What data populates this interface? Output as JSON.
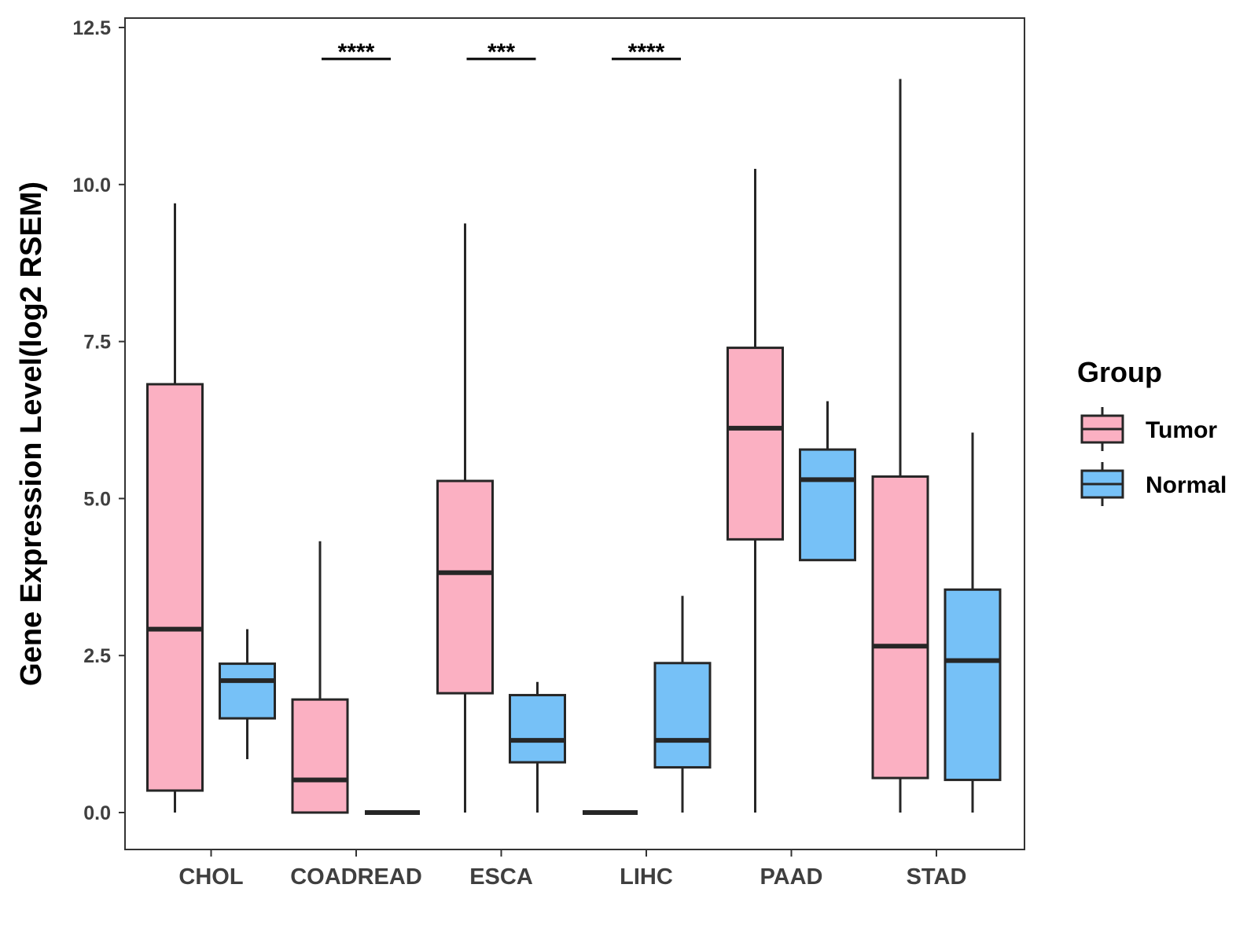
{
  "chart_data": {
    "type": "boxplot",
    "title": "",
    "xlabel": "",
    "ylabel": "Gene Expression Level(log2 RSEM)",
    "ylim": [
      -0.6,
      12.75
    ],
    "yticks": [
      "0.0",
      "2.5",
      "5.0",
      "7.5",
      "10.0",
      "12.5"
    ],
    "ytick_values": [
      0.0,
      2.5,
      5.0,
      7.5,
      10.0,
      12.5
    ],
    "categories": [
      "CHOL",
      "COADREAD",
      "ESCA",
      "LIHC",
      "PAAD",
      "STAD"
    ],
    "legend": {
      "title": "Group",
      "position": "right",
      "entries": [
        {
          "name": "Tumor",
          "color": "#FBB0C2"
        },
        {
          "name": "Normal",
          "color": "#76C1F7"
        }
      ]
    },
    "series": [
      {
        "name": "Tumor",
        "color": "#FBB0C2",
        "boxes": [
          {
            "category": "CHOL",
            "min": 0.0,
            "q1": 0.35,
            "median": 2.92,
            "q3": 6.82,
            "max": 9.7
          },
          {
            "category": "COADREAD",
            "min": 0.0,
            "q1": 0.0,
            "median": 0.52,
            "q3": 1.8,
            "max": 4.32
          },
          {
            "category": "ESCA",
            "min": 0.0,
            "q1": 1.9,
            "median": 3.82,
            "q3": 5.28,
            "max": 9.38
          },
          {
            "category": "LIHC",
            "min": 0.0,
            "q1": 0.0,
            "median": 0.0,
            "q3": 0.0,
            "max": 0.0
          },
          {
            "category": "PAAD",
            "min": 0.0,
            "q1": 4.35,
            "median": 6.12,
            "q3": 7.4,
            "max": 10.25
          },
          {
            "category": "STAD",
            "min": 0.0,
            "q1": 0.55,
            "median": 2.65,
            "q3": 5.35,
            "max": 11.68
          }
        ]
      },
      {
        "name": "Normal",
        "color": "#76C1F7",
        "boxes": [
          {
            "category": "CHOL",
            "min": 0.85,
            "q1": 1.5,
            "median": 2.1,
            "q3": 2.37,
            "max": 2.92
          },
          {
            "category": "COADREAD",
            "min": 0.0,
            "q1": 0.0,
            "median": 0.0,
            "q3": 0.0,
            "max": 0.0
          },
          {
            "category": "ESCA",
            "min": 0.0,
            "q1": 0.8,
            "median": 1.15,
            "q3": 1.87,
            "max": 2.08
          },
          {
            "category": "LIHC",
            "min": 0.0,
            "q1": 0.72,
            "median": 1.15,
            "q3": 2.38,
            "max": 3.45
          },
          {
            "category": "PAAD",
            "min": 4.02,
            "q1": 4.02,
            "median": 5.3,
            "q3": 5.78,
            "max": 6.55
          },
          {
            "category": "STAD",
            "min": 0.0,
            "q1": 0.52,
            "median": 2.42,
            "q3": 3.55,
            "max": 6.05
          }
        ]
      }
    ],
    "annotations": [
      {
        "category": "COADREAD",
        "label": "****",
        "y": 12.0
      },
      {
        "category": "ESCA",
        "label": "***",
        "y": 12.0
      },
      {
        "category": "LIHC",
        "label": "****",
        "y": 12.0
      }
    ]
  }
}
